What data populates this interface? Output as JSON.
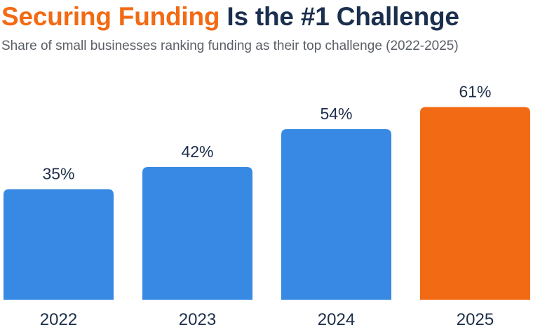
{
  "header": {
    "title_highlight": "Securing Funding",
    "title_rest": " Is the #1 Challenge",
    "subtitle": "Share of small businesses ranking funding as their top challenge (2022-2025)"
  },
  "colors": {
    "accent": "#f26a14",
    "title_dark": "#1b2f4e",
    "subtitle": "#5a5f66",
    "bar_default": "#3889e3",
    "bar_highlight": "#f26a14",
    "label_text": "#1e2f4a"
  },
  "chart_data": {
    "type": "bar",
    "title": "Securing Funding Is the #1 Challenge",
    "subtitle": "Share of small businesses ranking funding as their top challenge (2022-2025)",
    "categories": [
      "2022",
      "2023",
      "2024",
      "2025"
    ],
    "values": [
      35,
      42,
      54,
      61
    ],
    "value_labels": [
      "35%",
      "42%",
      "54%",
      "61%"
    ],
    "highlight_index": 3,
    "ylim": [
      0,
      100
    ],
    "xlabel": "",
    "ylabel": "",
    "grid": false,
    "legend": "none"
  }
}
